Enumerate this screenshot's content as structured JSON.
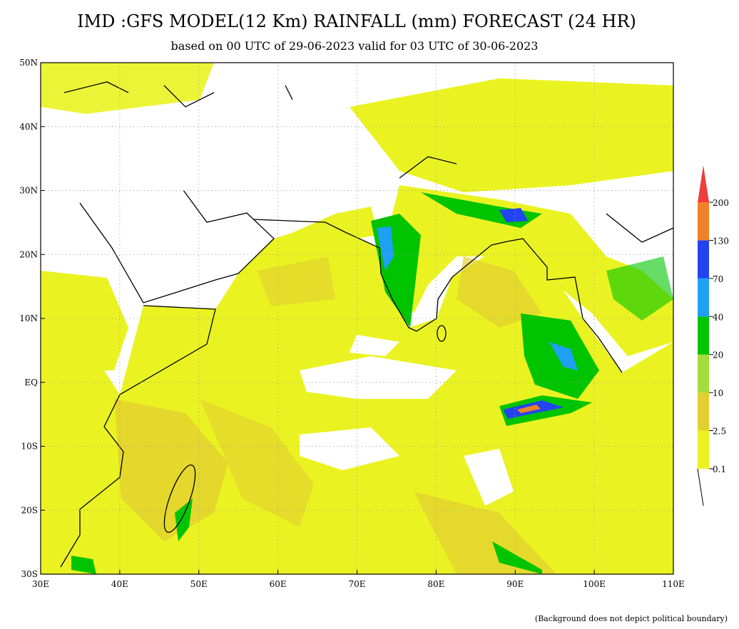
{
  "header": {
    "title": "IMD :GFS MODEL(12 Km) RAINFALL (mm) FORECAST (24 HR)",
    "subtitle": "based on 00 UTC of 29-06-2023 valid for 03 UTC of 30-06-2023"
  },
  "map": {
    "lon_labels": [
      "30E",
      "40E",
      "50E",
      "60E",
      "70E",
      "80E",
      "90E",
      "100E",
      "110E"
    ],
    "lat_labels": [
      "50N",
      "40N",
      "30N",
      "20N",
      "10N",
      "EQ",
      "10S",
      "20S",
      "30S"
    ]
  },
  "legend": {
    "levels": [
      "0.1",
      "2.5",
      "10",
      "20",
      "40",
      "70",
      "130",
      "200"
    ],
    "colors": [
      "#eaf321",
      "#e3cf30",
      "#a3dc3c",
      "#00c400",
      "#1ea0f5",
      "#2444f0",
      "#ef8228",
      "#f03c3c"
    ]
  },
  "footnote": "(Background does not depict political boundary)"
}
